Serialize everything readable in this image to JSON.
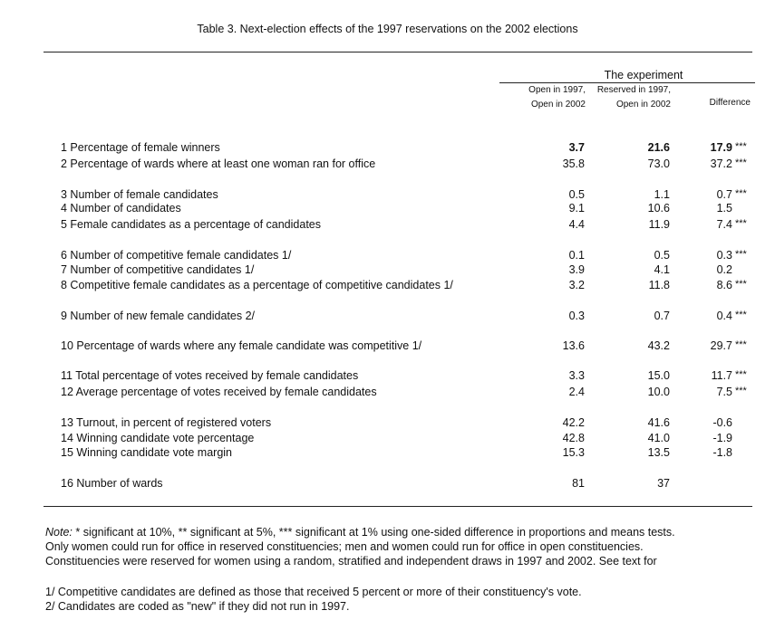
{
  "title": "Table 3.  Next-election effects of the 1997 reservations on the 2002 elections",
  "header": {
    "group_label": "The experiment",
    "col1_line1": "Open in 1997,",
    "col1_line2": "Open in 2002",
    "col2_line1": "Reserved in 1997,",
    "col2_line2": "Open in 2002",
    "col3": "Difference"
  },
  "rows": [
    {
      "label": "1 Percentage of female winners",
      "v1": "3.7",
      "v2": "21.6",
      "v3": "17.9",
      "stars": "***",
      "bold": true
    },
    {
      "label": "2 Percentage of wards where at least one woman ran for office",
      "v1": "35.8",
      "v2": "73.0",
      "v3": "37.2",
      "stars": "***"
    },
    {
      "label": "3 Number of female candidates",
      "v1": "0.5",
      "v2": "1.1",
      "v3": "0.7",
      "stars": "***"
    },
    {
      "label": "4 Number of candidates",
      "v1": "9.1",
      "v2": "10.6",
      "v3": "1.5",
      "stars": ""
    },
    {
      "label": "5 Female candidates as a percentage of candidates",
      "v1": "4.4",
      "v2": "11.9",
      "v3": "7.4",
      "stars": "***"
    },
    {
      "label": "6 Number of competitive female candidates  1/",
      "v1": "0.1",
      "v2": "0.5",
      "v3": "0.3",
      "stars": "***"
    },
    {
      "label": "7 Number of competitive candidates  1/",
      "v1": "3.9",
      "v2": "4.1",
      "v3": "0.2",
      "stars": ""
    },
    {
      "label": "8 Competitive female candidates as a percentage of competitive candidates  1/",
      "v1": "3.2",
      "v2": "11.8",
      "v3": "8.6",
      "stars": "***"
    },
    {
      "label": "9 Number of new female candidates  2/",
      "v1": "0.3",
      "v2": "0.7",
      "v3": "0.4",
      "stars": "***"
    },
    {
      "label": "10 Percentage of wards where any female candidate was competitive  1/",
      "v1": "13.6",
      "v2": "43.2",
      "v3": "29.7",
      "stars": "***"
    },
    {
      "label": "11 Total percentage of votes received by female candidates",
      "v1": "3.3",
      "v2": "15.0",
      "v3": "11.7",
      "stars": "***"
    },
    {
      "label": "12 Average percentage of votes received by female candidates",
      "v1": "2.4",
      "v2": "10.0",
      "v3": "7.5",
      "stars": "***"
    },
    {
      "label": "13 Turnout, in percent of registered voters",
      "v1": "42.2",
      "v2": "41.6",
      "v3": "-0.6",
      "stars": ""
    },
    {
      "label": "14 Winning candidate vote percentage",
      "v1": "42.8",
      "v2": "41.0",
      "v3": "-1.9",
      "stars": ""
    },
    {
      "label": "15 Winning candidate vote margin",
      "v1": "15.3",
      "v2": "13.5",
      "v3": "-1.8",
      "stars": ""
    },
    {
      "label": "16 Number of wards",
      "v1": "81",
      "v2": "37",
      "v3": "",
      "stars": ""
    }
  ],
  "notes": {
    "note_label": "Note:",
    "line1": " * significant at 10%, ** significant at 5%, *** significant at 1% using one-sided difference in proportions and means tests.",
    "line2": "Only women could run for office in reserved constituencies; men and women could run for office in open constituencies.",
    "line3": "Constituencies were reserved for women using a random, stratified and independent draws in 1997 and 2002.  See text for",
    "footnote1": "1/  Competitive candidates are defined as those that received 5 percent or more of their constituency's vote.",
    "footnote2": "2/  Candidates are coded as \"new\" if they did not run in 1997."
  }
}
